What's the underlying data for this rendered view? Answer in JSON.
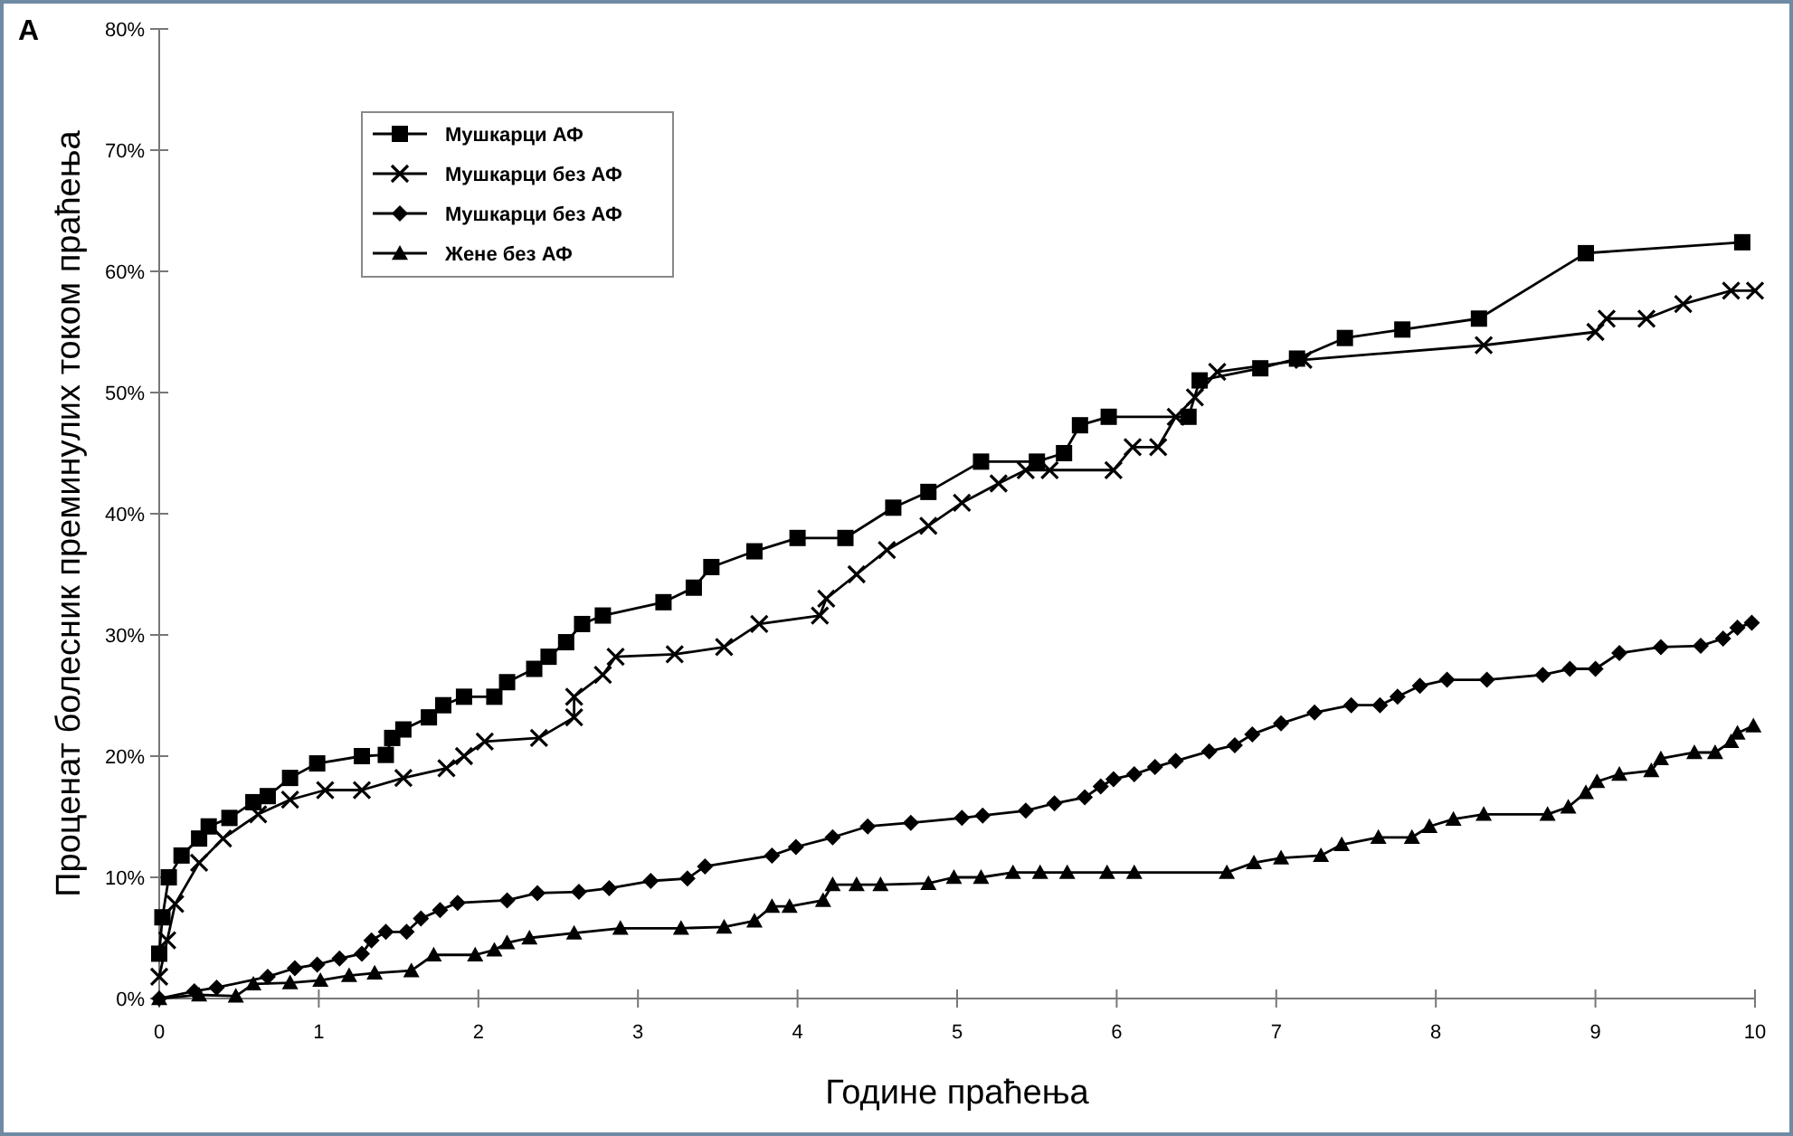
{
  "chart_data": {
    "type": "line",
    "xlabel": "Године праћења",
    "ylabel": "Проценат болесник преминулих током праћења",
    "annotations": [
      "A"
    ],
    "xlim": [
      0,
      10
    ],
    "xticks": [
      0,
      1,
      2,
      3,
      4,
      5,
      6,
      7,
      8,
      9,
      10
    ],
    "ylim": [
      0,
      80
    ],
    "yticks": [
      {
        "value": 0,
        "label": "0%"
      },
      {
        "value": 10,
        "label": "10%"
      },
      {
        "value": 20,
        "label": "20%"
      },
      {
        "value": 30,
        "label": "30%"
      },
      {
        "value": 40,
        "label": "40%"
      },
      {
        "value": 50,
        "label": "50%"
      },
      {
        "value": 60,
        "label": "60%"
      },
      {
        "value": 70,
        "label": "70%"
      },
      {
        "value": 80,
        "label": "80%"
      }
    ],
    "grid": false,
    "legend": "top left",
    "line_style": "solid",
    "series": [
      {
        "name": "Мушкарци АФ",
        "color": "#000000",
        "marker": "square",
        "x": [
          0,
          0.02,
          0.06,
          0.14,
          0.25,
          0.31,
          0.44,
          0.59,
          0.68,
          0.82,
          0.99,
          1.27,
          1.42,
          1.46,
          1.53,
          1.69,
          1.78,
          1.91,
          2.1,
          2.18,
          2.35,
          2.44,
          2.55,
          2.65,
          2.78,
          3.16,
          3.35,
          3.46,
          3.73,
          4.0,
          4.3,
          4.6,
          4.82,
          5.15,
          5.5,
          5.67,
          5.77,
          5.95,
          6.45,
          6.52,
          6.9,
          7.13,
          7.43,
          7.79,
          8.27,
          8.94,
          9.92
        ],
        "values": [
          3.7,
          6.7,
          10,
          11.8,
          13.2,
          14.2,
          14.9,
          16.2,
          16.7,
          18.2,
          19.4,
          20,
          20.1,
          21.5,
          22.2,
          23.2,
          24.2,
          24.9,
          24.9,
          26.1,
          27.2,
          28.2,
          29.4,
          30.9,
          31.6,
          32.7,
          33.9,
          35.6,
          36.9,
          38,
          38,
          40.5,
          41.8,
          44.3,
          44.3,
          45,
          47.3,
          48,
          48,
          51,
          52,
          52.8,
          54.5,
          55.2,
          56.1,
          61.5,
          62.4
        ]
      },
      {
        "name": "Мушкарци без АФ",
        "color": "#000000",
        "marker": "cross",
        "x": [
          0,
          0.05,
          0.1,
          0.25,
          0.4,
          0.62,
          0.82,
          1.04,
          1.27,
          1.53,
          1.8,
          1.91,
          2.04,
          2.38,
          2.6,
          2.6,
          2.78,
          2.86,
          3.23,
          3.54,
          3.76,
          4.14,
          4.18,
          4.37,
          4.56,
          4.82,
          5.03,
          5.26,
          5.43,
          5.58,
          5.98,
          6.1,
          6.26,
          6.37,
          6.49,
          6.63,
          7.17,
          8.3,
          9.0,
          9.07,
          9.32,
          9.55,
          9.85,
          10
        ],
        "values": [
          1.8,
          4.8,
          7.8,
          11.2,
          13.2,
          15.2,
          16.4,
          17.2,
          17.2,
          18.2,
          19,
          20,
          21.2,
          21.5,
          23.2,
          24.9,
          26.7,
          28.2,
          28.4,
          29,
          30.9,
          31.6,
          33,
          35,
          37,
          39,
          40.9,
          42.5,
          43.6,
          43.6,
          43.6,
          45.5,
          45.5,
          48,
          49.6,
          51.7,
          52.7,
          53.9,
          55,
          56.1,
          56.1,
          57.3,
          58.4,
          58.4
        ]
      },
      {
        "name": "Мушкарци без АФ",
        "color": "#000000",
        "marker": "diamond",
        "x": [
          0,
          0.22,
          0.36,
          0.68,
          0.85,
          0.99,
          1.13,
          1.27,
          1.33,
          1.42,
          1.55,
          1.64,
          1.76,
          1.87,
          2.18,
          2.37,
          2.63,
          2.82,
          3.08,
          3.31,
          3.42,
          3.84,
          3.99,
          4.22,
          4.44,
          4.71,
          5.03,
          5.16,
          5.43,
          5.61,
          5.8,
          5.9,
          5.98,
          6.11,
          6.24,
          6.37,
          6.58,
          6.74,
          6.85,
          7.03,
          7.24,
          7.47,
          7.65,
          7.76,
          7.9,
          8.07,
          8.32,
          8.67,
          8.84,
          9.0,
          9.15,
          9.41,
          9.66,
          9.8,
          9.89,
          9.98
        ],
        "values": [
          0,
          0.6,
          0.9,
          1.8,
          2.5,
          2.8,
          3.3,
          3.7,
          4.8,
          5.5,
          5.5,
          6.6,
          7.3,
          7.9,
          8.1,
          8.7,
          8.8,
          9.1,
          9.7,
          9.9,
          10.9,
          11.8,
          12.5,
          13.3,
          14.2,
          14.5,
          14.9,
          15.1,
          15.5,
          16.1,
          16.6,
          17.5,
          18.1,
          18.5,
          19.1,
          19.6,
          20.4,
          20.9,
          21.8,
          22.7,
          23.6,
          24.2,
          24.2,
          24.9,
          25.8,
          26.3,
          26.3,
          26.7,
          27.2,
          27.2,
          28.5,
          29,
          29.1,
          29.7,
          30.6,
          31
        ]
      },
      {
        "name": "Жене без АФ",
        "color": "#000000",
        "marker": "triangle",
        "x": [
          0,
          0.25,
          0.48,
          0.59,
          0.82,
          1.01,
          1.19,
          1.35,
          1.58,
          1.72,
          1.98,
          2.1,
          2.18,
          2.32,
          2.6,
          2.89,
          3.27,
          3.54,
          3.73,
          3.84,
          3.95,
          4.16,
          4.22,
          4.37,
          4.52,
          4.82,
          4.98,
          5.15,
          5.35,
          5.52,
          5.69,
          5.94,
          6.11,
          6.69,
          6.86,
          7.03,
          7.28,
          7.41,
          7.64,
          7.85,
          7.96,
          8.11,
          8.3,
          8.7,
          8.83,
          8.94,
          9.01,
          9.15,
          9.35,
          9.41,
          9.62,
          9.75,
          9.85,
          9.89,
          9.99
        ],
        "values": [
          0,
          0.3,
          0.2,
          1.2,
          1.3,
          1.5,
          1.9,
          2.1,
          2.3,
          3.6,
          3.6,
          4,
          4.6,
          5,
          5.4,
          5.8,
          5.8,
          5.9,
          6.4,
          7.6,
          7.6,
          8.1,
          9.4,
          9.4,
          9.4,
          9.5,
          10,
          10,
          10.4,
          10.4,
          10.4,
          10.4,
          10.4,
          10.4,
          11.2,
          11.6,
          11.8,
          12.7,
          13.3,
          13.3,
          14.2,
          14.8,
          15.2,
          15.2,
          15.8,
          17,
          17.9,
          18.5,
          18.8,
          19.8,
          20.3,
          20.3,
          21.2,
          21.9,
          22.5
        ]
      }
    ]
  }
}
